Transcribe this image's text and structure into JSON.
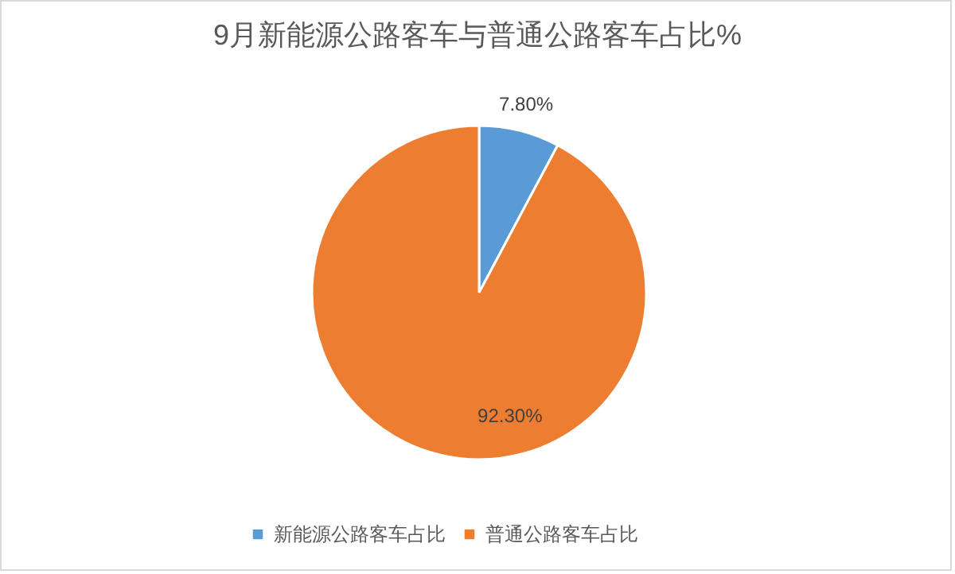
{
  "chart_data": {
    "type": "pie",
    "title": "9月新能源公路客车与普通公路客车占比%",
    "categories": [
      "新能源公路客车占比",
      "普通公路客车占比"
    ],
    "values": [
      7.8,
      92.3
    ],
    "colors": [
      "#5b9bd5",
      "#ed7d31"
    ],
    "value_labels": [
      "7.80%",
      "92.30%"
    ],
    "legend": "bottom"
  }
}
